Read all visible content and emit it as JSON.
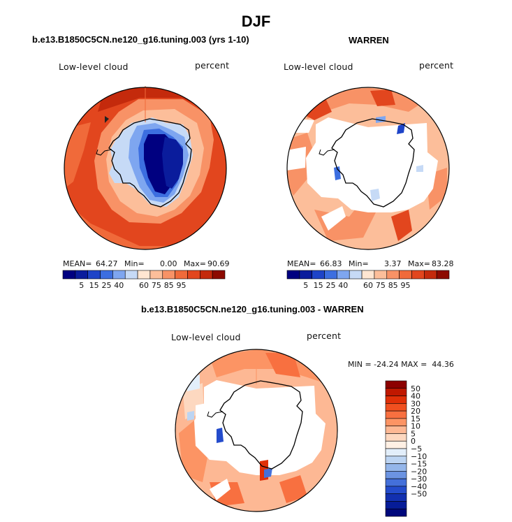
{
  "title": "DJF",
  "panels": [
    {
      "title": "b.e13.B1850C5CN.ne120_g16.tuning.003 (yrs 1-10)",
      "variable_label": "Low-level cloud",
      "units_label": "percent",
      "stats": {
        "mean_label": "MEAN=",
        "mean": "64.27",
        "min_label": "Min=",
        "min": "0.00",
        "max_label": "Max=",
        "max": "90.69"
      }
    },
    {
      "title": "WARREN",
      "variable_label": "Low-level cloud",
      "units_label": "percent",
      "stats": {
        "mean_label": "MEAN=",
        "mean": "66.83",
        "min_label": "Min=",
        "min": "3.37",
        "max_label": "Max=",
        "max": "83.28"
      }
    },
    {
      "title": "b.e13.B1850C5CN.ne120_g16.tuning.003 - WARREN",
      "variable_label": "Low-level cloud",
      "units_label": "percent",
      "minmax_text": "MIN = -24.24 MAX =  44.36"
    }
  ],
  "colorbar_abs": {
    "colors": [
      "#000080",
      "#0A1C9C",
      "#1E44C8",
      "#3C6EE0",
      "#7EA6F0",
      "#C6DAF6",
      "#FFE6D2",
      "#FCBE9A",
      "#F89266",
      "#F06A3A",
      "#E2461E",
      "#C42A0C",
      "#8C0A00"
    ],
    "tick_labels": [
      "5",
      "15",
      "25",
      "40",
      "60",
      "75",
      "85",
      "95"
    ]
  },
  "colorbar_diff": {
    "colors": [
      "#8C0000",
      "#C01800",
      "#E03008",
      "#F05020",
      "#F87040",
      "#FC9464",
      "#FDB894",
      "#FDD8C0",
      "#FFF0E4",
      "#E2EEFA",
      "#BCD4F2",
      "#94B6EA",
      "#6C94E2",
      "#4470DA",
      "#244CCC",
      "#1230B0",
      "#061C98",
      "#00087C"
    ],
    "tick_labels": [
      "50",
      "40",
      "30",
      "20",
      "15",
      "10",
      "5",
      "0",
      "−5",
      "−10",
      "−15",
      "−20",
      "−30",
      "−40",
      "−50"
    ]
  },
  "chart_data": [
    {
      "type": "heatmap",
      "title": "b.e13.B1850C5CN.ne120_g16.tuning.003 (yrs 1-10)",
      "variable": "Low-level cloud",
      "units": "percent",
      "projection": "south polar stereographic",
      "levels": [
        5,
        10,
        15,
        20,
        25,
        30,
        40,
        50,
        60,
        70,
        75,
        80,
        85,
        90,
        95
      ],
      "mean": 64.27,
      "min": 0.0,
      "max": 90.69
    },
    {
      "type": "heatmap",
      "title": "WARREN",
      "variable": "Low-level cloud",
      "units": "percent",
      "projection": "south polar stereographic",
      "levels": [
        5,
        10,
        15,
        20,
        25,
        30,
        40,
        50,
        60,
        70,
        75,
        80,
        85,
        90,
        95
      ],
      "mean": 66.83,
      "min": 3.37,
      "max": 83.28
    },
    {
      "type": "heatmap",
      "title": "b.e13.B1850C5CN.ne120_g16.tuning.003 - WARREN",
      "variable": "Low-level cloud",
      "units": "percent",
      "projection": "south polar stereographic",
      "levels": [
        -50,
        -40,
        -30,
        -20,
        -15,
        -10,
        -5,
        0,
        5,
        10,
        15,
        20,
        30,
        40,
        50
      ],
      "min": -24.24,
      "max": 44.36
    }
  ]
}
